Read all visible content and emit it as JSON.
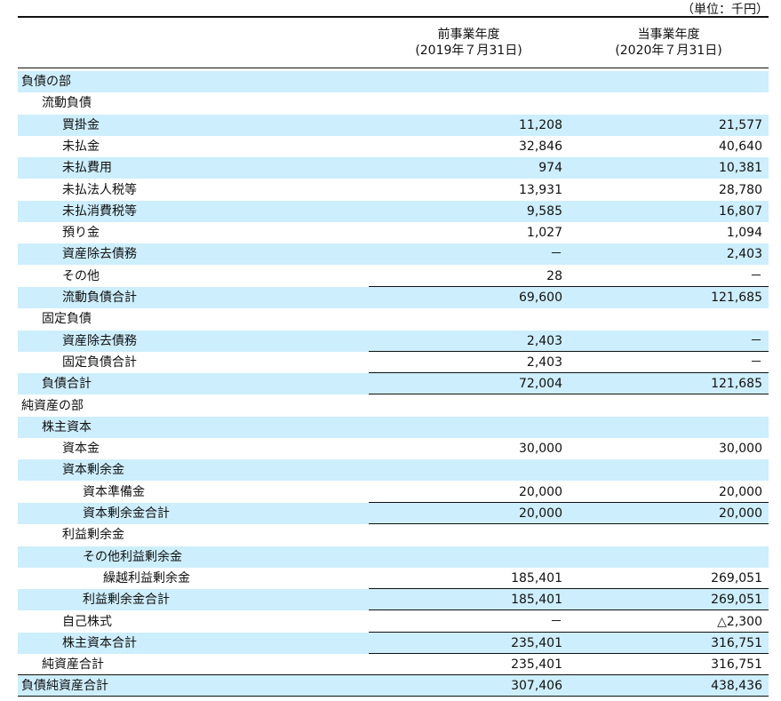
{
  "header": {
    "unit": "（単位：千円）",
    "columns": [
      {
        "title": "前事業年度",
        "date": "(2019年７月31日)"
      },
      {
        "title": "当事業年度",
        "date": "(2020年７月31日)"
      }
    ]
  },
  "table": {
    "rows": [
      [
        "負債の部"
      ],
      [
        "流動負債"
      ],
      [
        "買掛金",
        "11,208",
        "21,577"
      ],
      [
        "未払金",
        "32,846",
        "40,640"
      ],
      [
        "未払費用",
        "974",
        "10,381"
      ],
      [
        "未払法人税等",
        "13,931",
        "28,780"
      ],
      [
        "未払消費税等",
        "9,585",
        "16,807"
      ],
      [
        "預り金",
        "1,027",
        "1,094"
      ],
      [
        "資産除去債務",
        "－",
        "2,403"
      ],
      [
        "その他",
        "28",
        "－"
      ],
      [
        "流動負債合計",
        "69,600",
        "121,685"
      ],
      [
        "固定負債"
      ],
      [
        "資産除去債務",
        "2,403",
        "－"
      ],
      [
        "固定負債合計",
        "2,403",
        "－"
      ],
      [
        "負債合計",
        "72,004",
        "121,685"
      ],
      [
        "純資産の部"
      ],
      [
        "株主資本"
      ],
      [
        "資本金",
        "30,000",
        "30,000"
      ],
      [
        "資本剰余金"
      ],
      [
        "資本準備金",
        "20,000",
        "20,000"
      ],
      [
        "資本剰余金合計",
        "20,000",
        "20,000"
      ],
      [
        "利益剰余金"
      ],
      [
        "その他利益剰余金"
      ],
      [
        "繰越利益剰余金",
        "185,401",
        "269,051"
      ],
      [
        "利益剰余金合計",
        "185,401",
        "269,051"
      ],
      [
        "自己株式",
        "－",
        "△2,300"
      ],
      [
        "株主資本合計",
        "235,401",
        "316,751"
      ],
      [
        "純資産合計",
        "235,401",
        "316,751"
      ],
      [
        "負債純資産合計",
        "307,406",
        "438,436"
      ]
    ]
  }
}
